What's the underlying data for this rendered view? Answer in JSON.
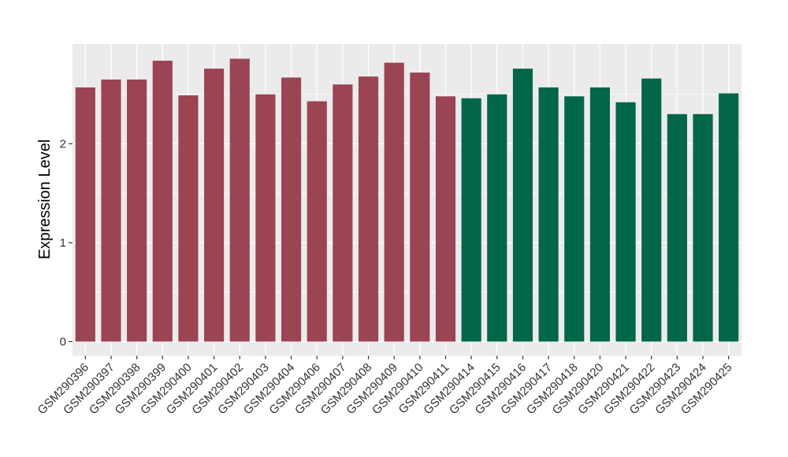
{
  "chart_data": {
    "type": "bar",
    "title": "",
    "xlabel": "",
    "ylabel": "Expression Level",
    "ylim": [
      0,
      3
    ],
    "yticks": [
      0,
      1,
      2
    ],
    "yticks_minor": [
      0.5,
      1.5,
      2.5
    ],
    "grid": "white major and minor horizontal lines plus vertical lines at category centers on gray panel",
    "legend": "none",
    "x_tick_angle": 45,
    "bar_width_ratio": 0.77,
    "categories": [
      "GSM290396",
      "GSM290397",
      "GSM290398",
      "GSM290399",
      "GSM290400",
      "GSM290401",
      "GSM290402",
      "GSM290403",
      "GSM290404",
      "GSM290406",
      "GSM290407",
      "GSM290408",
      "GSM290409",
      "GSM290410",
      "GSM290411",
      "GSM290414",
      "GSM290415",
      "GSM290416",
      "GSM290417",
      "GSM290418",
      "GSM290420",
      "GSM290421",
      "GSM290422",
      "GSM290423",
      "GSM290424",
      "GSM290425"
    ],
    "values": [
      2.57,
      2.65,
      2.65,
      2.84,
      2.49,
      2.76,
      2.86,
      2.5,
      2.67,
      2.43,
      2.6,
      2.68,
      2.82,
      2.72,
      2.48,
      2.46,
      2.5,
      2.76,
      2.57,
      2.48,
      2.57,
      2.42,
      2.66,
      2.3,
      2.3,
      2.51
    ],
    "group_index": [
      0,
      0,
      0,
      0,
      0,
      0,
      0,
      0,
      0,
      0,
      0,
      0,
      0,
      0,
      0,
      1,
      1,
      1,
      1,
      1,
      1,
      1,
      1,
      1,
      1,
      1
    ],
    "group_colors": [
      "#9B4453",
      "#026648"
    ]
  },
  "style": {
    "panel_bg": "#EBEBEB",
    "page_bg": "#FFFFFF",
    "grid_color": "#FFFFFF",
    "axis_text_color": "#333333",
    "axis_title_color": "#000000",
    "tick_color": "#333333"
  }
}
